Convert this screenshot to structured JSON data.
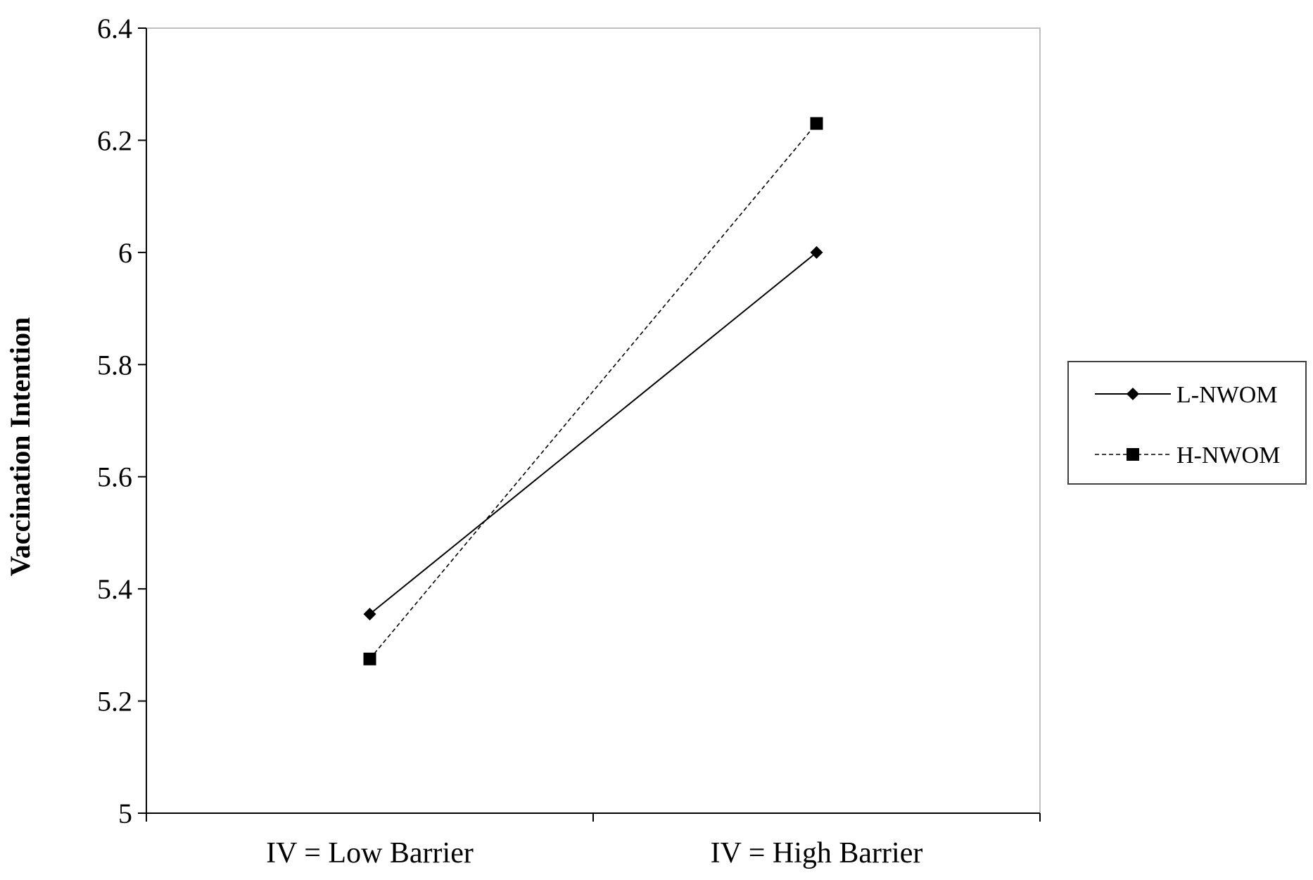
{
  "chart_data": {
    "type": "line",
    "title": "",
    "xlabel": "",
    "ylabel": "Vaccination Intention",
    "categories": [
      "IV = Low Barrier",
      "IV = High Barrier"
    ],
    "ylim": [
      5,
      6.4
    ],
    "yticks": [
      "5",
      "5.2",
      "5.4",
      "5.6",
      "5.8",
      "6",
      "6.2",
      "6.4"
    ],
    "yticks_values": [
      5,
      5.2,
      5.4,
      5.6,
      5.8,
      6,
      6.2,
      6.4
    ],
    "grid": false,
    "legend_position": "right",
    "series": [
      {
        "name": "L-NWOM",
        "values": [
          5.355,
          6.0
        ],
        "marker": "diamond",
        "line": "solid",
        "color": "#000000"
      },
      {
        "name": "H-NWOM",
        "values": [
          5.275,
          6.23
        ],
        "marker": "square",
        "line": "dashed",
        "color": "#000000"
      }
    ]
  }
}
